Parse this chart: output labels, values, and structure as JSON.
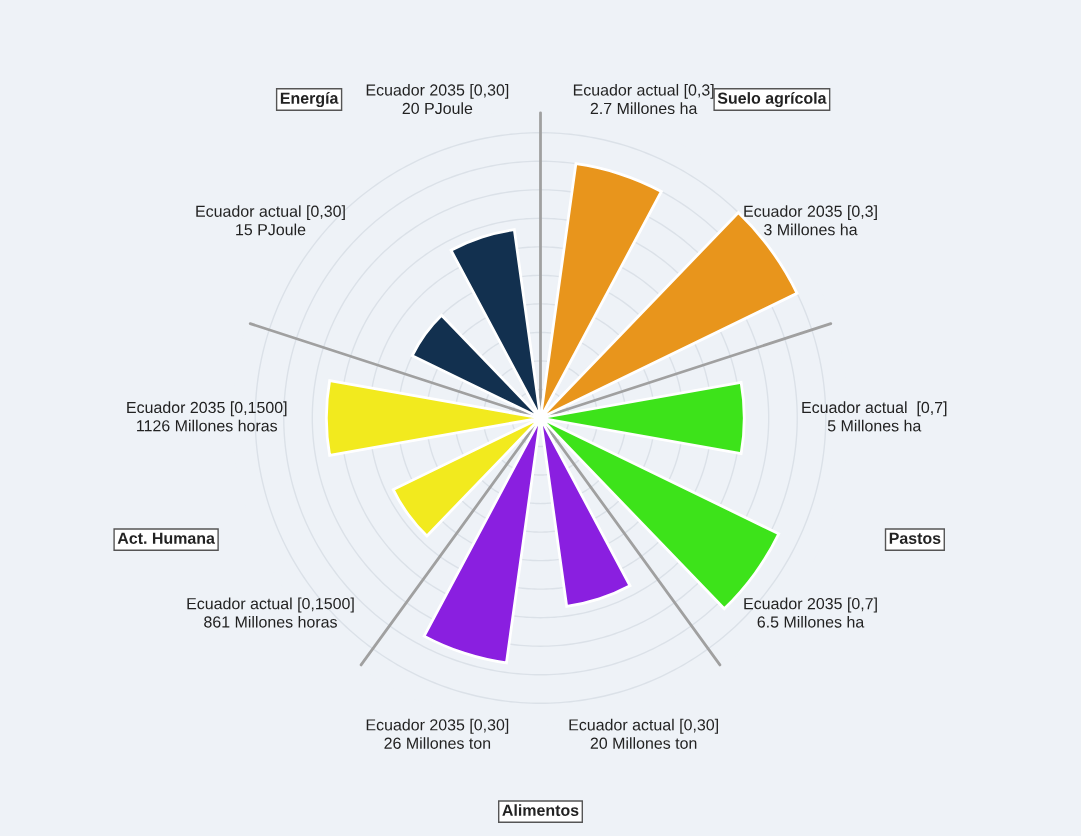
{
  "chart_data": {
    "type": "other",
    "categories": [
      "Ecuador actual [0,3]",
      "Ecuador 2035 [0,3]",
      "Ecuador actual  [0,7]",
      "Ecuador 2035 [0,7]",
      "Ecuador actual [0,30]",
      "Ecuador 2035 [0,30]",
      "Ecuador actual [0,1500]",
      "Ecuador 2035 [0,1500]",
      "Ecuador actual [0,30]",
      "Ecuador 2035 [0,30]"
    ],
    "values": [
      2.7,
      3,
      5,
      6.5,
      20,
      26,
      861,
      1126,
      15,
      20
    ],
    "colors": [
      "#e8951c",
      "#e8951c",
      "#3de31a",
      "#3de31a",
      "#8a1fe0",
      "#8a1fe0",
      "#f2ea1e",
      "#f2ea1e",
      "#12304f",
      "#12304f"
    ],
    "value_labels": [
      "2.7 Millones ha",
      "3 Millones ha",
      "5 Millones ha",
      "6.5 Millones ha",
      "20 Millones ton",
      "26 Millones ton",
      "861 Millones horas",
      "1126 Millones horas",
      "15 PJoule",
      "20 PJoule"
    ],
    "annotations": [
      "Suelo agrícola",
      "Pastos",
      "Alimentos",
      "Act. Humana",
      "Energía"
    ]
  }
}
